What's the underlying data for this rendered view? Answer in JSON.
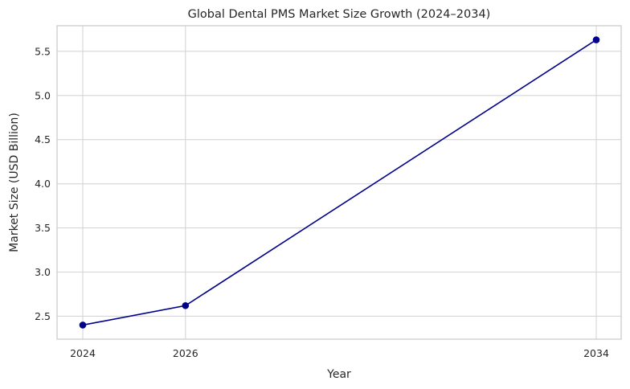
{
  "chart_data": {
    "type": "line",
    "title": "Global Dental PMS Market Size Growth (2024–2034)",
    "xlabel": "Year",
    "ylabel": "Market Size (USD Billion)",
    "categories": [
      "2024",
      "2026",
      "2034"
    ],
    "series": [
      {
        "name": "Market Size",
        "values": [
          2.4,
          2.62,
          5.63
        ],
        "color": "#00008b",
        "marker": "circle"
      }
    ],
    "yticks": [
      "2.5",
      "3.0",
      "3.5",
      "4.0",
      "4.5",
      "5.0",
      "5.5"
    ],
    "ylim": [
      2.24,
      5.79
    ],
    "grid": true,
    "legend": null
  }
}
